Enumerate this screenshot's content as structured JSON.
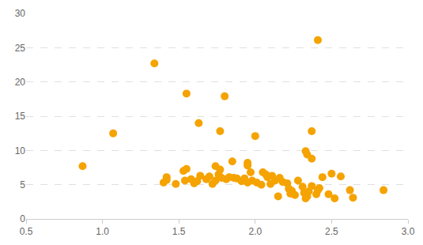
{
  "chart_data": {
    "type": "scatter",
    "color": "#f5a300",
    "marker": "circle",
    "grid": true,
    "x": [
      0.87,
      1.07,
      1.34,
      1.55,
      1.8,
      1.63,
      1.77,
      2.0,
      2.41,
      2.37,
      2.33,
      2.34,
      2.37,
      1.95,
      1.95,
      1.85,
      1.74,
      1.77,
      1.53,
      1.55,
      1.4,
      1.42,
      1.42,
      1.48,
      1.54,
      1.58,
      1.6,
      1.62,
      1.64,
      1.68,
      1.7,
      1.72,
      1.74,
      1.76,
      1.78,
      1.81,
      1.83,
      1.86,
      1.88,
      1.91,
      1.93,
      1.95,
      1.97,
      1.98,
      2.01,
      2.04,
      2.05,
      2.07,
      2.08,
      2.1,
      2.11,
      2.13,
      2.15,
      2.16,
      2.18,
      2.21,
      2.22,
      2.23,
      2.24,
      2.26,
      2.28,
      2.31,
      2.32,
      2.33,
      2.34,
      2.35,
      2.37,
      2.4,
      2.41,
      2.42,
      2.44,
      2.48,
      2.5,
      2.52,
      2.56,
      2.62,
      2.64,
      2.84
    ],
    "values": [
      7.7,
      12.5,
      22.7,
      18.3,
      17.9,
      14.0,
      12.8,
      12.1,
      26.1,
      12.8,
      9.9,
      9.4,
      8.8,
      8.2,
      7.8,
      8.4,
      7.7,
      7.2,
      7.0,
      7.3,
      5.3,
      5.7,
      6.1,
      5.1,
      5.6,
      5.8,
      5.2,
      5.5,
      6.3,
      5.8,
      6.2,
      5.1,
      5.6,
      6.5,
      6.0,
      5.8,
      6.1,
      6.0,
      5.9,
      5.5,
      5.9,
      5.3,
      6.8,
      5.6,
      5.3,
      5.0,
      6.8,
      6.5,
      6.1,
      5.1,
      6.3,
      5.6,
      3.3,
      6.0,
      5.4,
      5.2,
      4.4,
      3.7,
      4.1,
      3.5,
      5.6,
      4.7,
      3.8,
      3.0,
      3.3,
      4.0,
      4.8,
      3.6,
      4.2,
      4.5,
      6.1,
      3.6,
      6.6,
      3.0,
      6.2,
      4.2,
      3.1,
      4.2
    ],
    "xlim": [
      0.5,
      3.0
    ],
    "xticks": [
      0.5,
      {
        "value": 1,
        "label": "1.0"
      },
      1.5,
      {
        "value": 2,
        "label": "2.0"
      },
      2.5,
      {
        "value": 3,
        "label": "3.0"
      }
    ],
    "ylim": [
      0,
      30
    ],
    "yticks": [
      0,
      5,
      10,
      15,
      20,
      25,
      30
    ]
  }
}
